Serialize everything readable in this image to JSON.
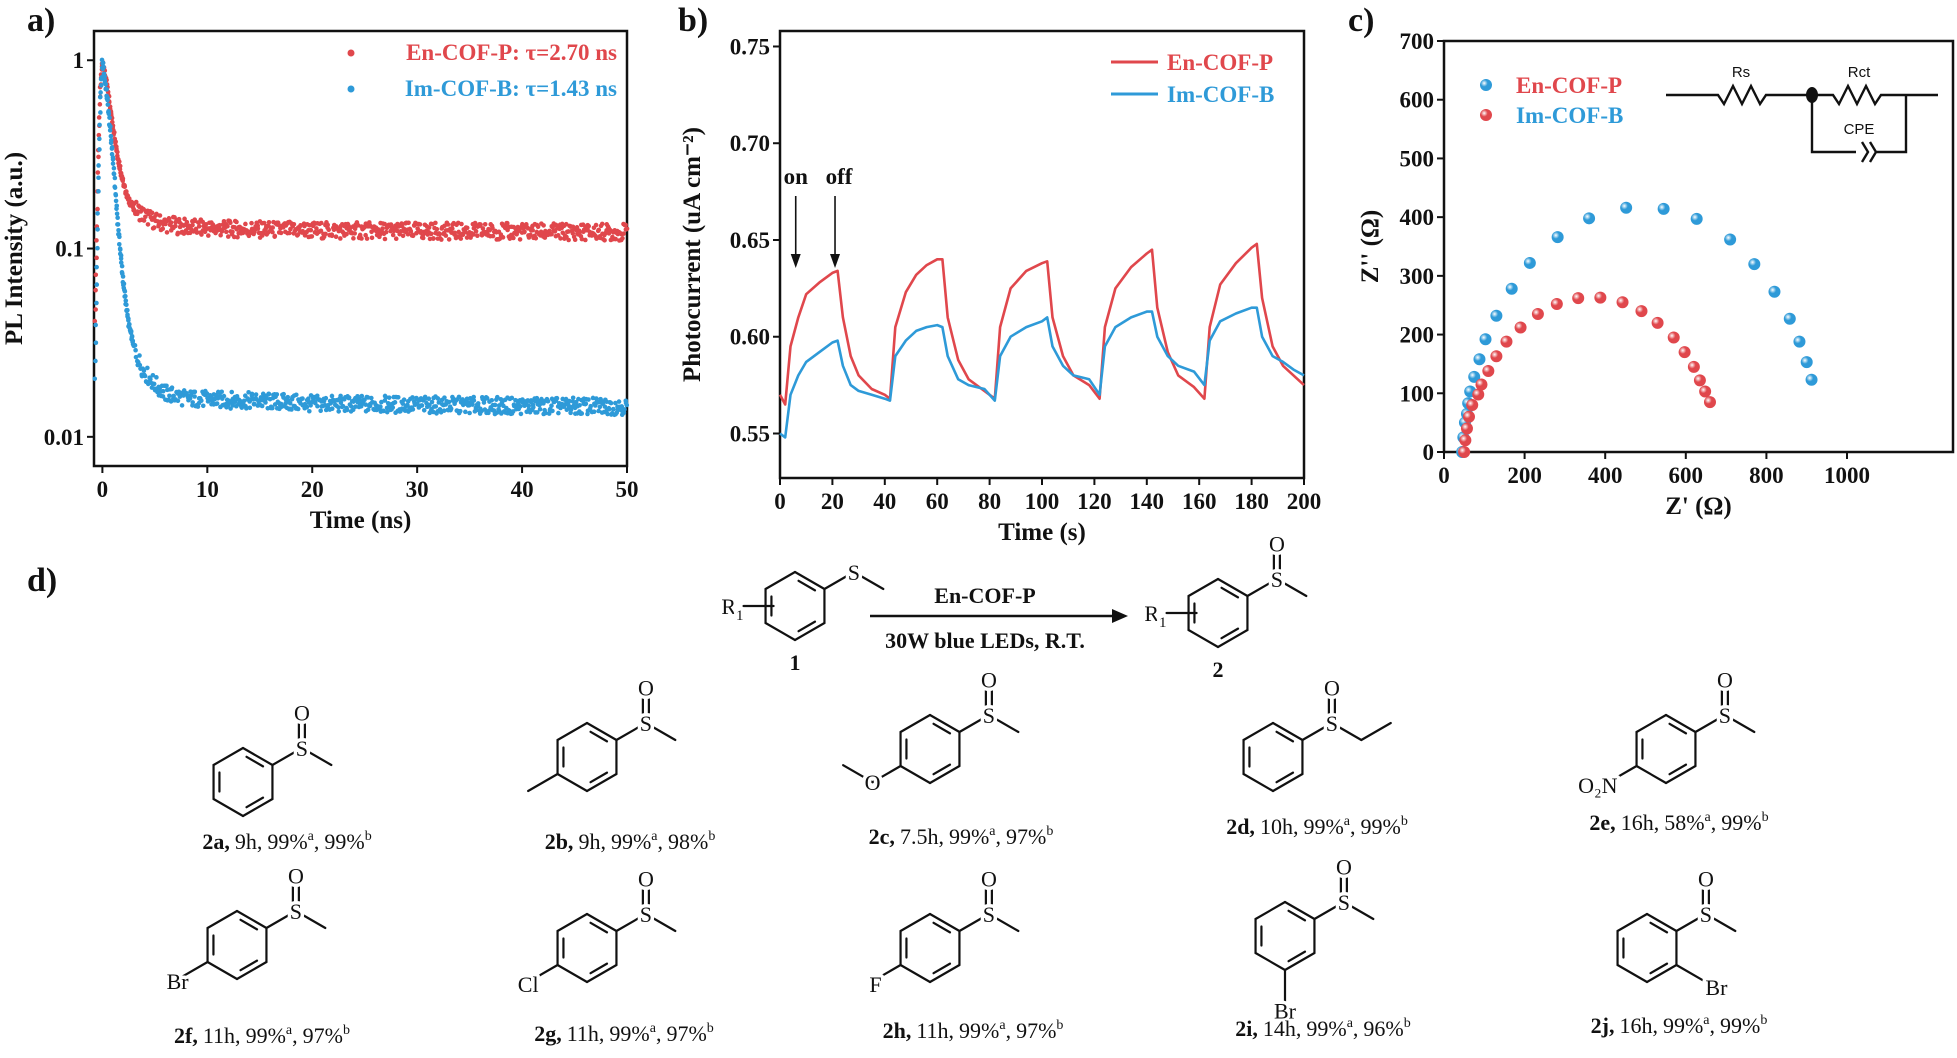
{
  "panel_labels": [
    "a)",
    "b)",
    "c)",
    "d)"
  ],
  "colors": {
    "red": "#e0474c",
    "blue": "#2e9ad8",
    "ink": "#111111"
  },
  "chart_data": [
    {
      "id": "a",
      "type": "scatter",
      "xlabel": "Time (ns)",
      "ylabel": "PL Intensity (a.u.)",
      "xlim": [
        -0.8,
        50
      ],
      "ylim": [
        0.007,
        1.43
      ],
      "ylog": true,
      "xticks": [
        0,
        10,
        20,
        30,
        40,
        50
      ],
      "xtick_labels": [
        "0",
        "10",
        "20",
        "30",
        "40",
        "50"
      ],
      "yticks": [
        1,
        0.1,
        0.01
      ],
      "ytick_labels": [
        "1",
        "0.1",
        "0.01"
      ],
      "legend_position": "top-right",
      "series": [
        {
          "name": "En-COF-P: τ=2.70 ns",
          "color": "#e0474c",
          "x": [
            -0.7,
            -0.4,
            -0.2,
            0,
            0.5,
            1,
            1.5,
            2,
            2.5,
            3,
            4,
            5,
            6,
            8,
            10,
            15,
            20,
            30,
            40,
            50
          ],
          "y": [
            0.04,
            0.3,
            0.7,
            1,
            0.7,
            0.45,
            0.3,
            0.22,
            0.18,
            0.165,
            0.15,
            0.14,
            0.135,
            0.13,
            0.128,
            0.126,
            0.125,
            0.124,
            0.123,
            0.122
          ]
        },
        {
          "name": "Im-COF-B: τ=1.43 ns",
          "color": "#2e9ad8",
          "x": [
            -0.7,
            -0.4,
            -0.2,
            0,
            0.5,
            1,
            1.5,
            2,
            2.5,
            3,
            3.5,
            4,
            5,
            6,
            8,
            10,
            15,
            20,
            30,
            40,
            50
          ],
          "y": [
            0.02,
            0.2,
            0.6,
            1,
            0.6,
            0.3,
            0.13,
            0.065,
            0.04,
            0.03,
            0.025,
            0.022,
            0.019,
            0.017,
            0.016,
            0.0158,
            0.0155,
            0.015,
            0.0148,
            0.0146,
            0.0145
          ]
        }
      ]
    },
    {
      "id": "b",
      "type": "line",
      "xlabel": "Time (s)",
      "ylabel": "Photocurrent (uA cm⁻²)",
      "xlim": [
        0,
        200
      ],
      "ylim": [
        0.527,
        0.758
      ],
      "xticks": [
        0,
        20,
        40,
        60,
        80,
        100,
        120,
        140,
        160,
        180,
        200
      ],
      "xtick_labels": [
        "0",
        "20",
        "40",
        "60",
        "80",
        "100",
        "120",
        "140",
        "160",
        "180",
        "200"
      ],
      "yticks": [
        0.55,
        0.6,
        0.65,
        0.7,
        0.75
      ],
      "ytick_labels": [
        "0.55",
        "0.60",
        "0.65",
        "0.70",
        "0.75"
      ],
      "legend_position": "top-right",
      "annotations": [
        {
          "text": "on",
          "t": 6
        },
        {
          "text": "off",
          "t": 21
        }
      ],
      "series": [
        {
          "name": "En-COF-P",
          "color": "#e0474c",
          "points": [
            [
              0,
              0.57
            ],
            [
              2,
              0.565
            ],
            [
              4,
              0.595
            ],
            [
              7,
              0.61
            ],
            [
              10,
              0.622
            ],
            [
              15,
              0.628
            ],
            [
              20,
              0.633
            ],
            [
              22,
              0.634
            ],
            [
              24,
              0.61
            ],
            [
              27,
              0.59
            ],
            [
              30,
              0.58
            ],
            [
              35,
              0.573
            ],
            [
              40,
              0.57
            ],
            [
              42,
              0.568
            ],
            [
              44,
              0.605
            ],
            [
              48,
              0.623
            ],
            [
              52,
              0.632
            ],
            [
              56,
              0.637
            ],
            [
              60,
              0.64
            ],
            [
              62,
              0.64
            ],
            [
              64,
              0.61
            ],
            [
              68,
              0.588
            ],
            [
              72,
              0.578
            ],
            [
              78,
              0.572
            ],
            [
              82,
              0.568
            ],
            [
              84,
              0.605
            ],
            [
              88,
              0.625
            ],
            [
              94,
              0.634
            ],
            [
              100,
              0.638
            ],
            [
              102,
              0.639
            ],
            [
              104,
              0.61
            ],
            [
              108,
              0.59
            ],
            [
              112,
              0.58
            ],
            [
              118,
              0.575
            ],
            [
              122,
              0.568
            ],
            [
              124,
              0.605
            ],
            [
              128,
              0.625
            ],
            [
              134,
              0.636
            ],
            [
              140,
              0.643
            ],
            [
              142,
              0.645
            ],
            [
              144,
              0.615
            ],
            [
              148,
              0.592
            ],
            [
              152,
              0.58
            ],
            [
              158,
              0.574
            ],
            [
              162,
              0.568
            ],
            [
              164,
              0.605
            ],
            [
              168,
              0.627
            ],
            [
              174,
              0.638
            ],
            [
              180,
              0.646
            ],
            [
              182,
              0.648
            ],
            [
              184,
              0.62
            ],
            [
              188,
              0.595
            ],
            [
              192,
              0.585
            ],
            [
              196,
              0.58
            ],
            [
              200,
              0.575
            ]
          ]
        },
        {
          "name": "Im-COF-B",
          "color": "#2e9ad8",
          "points": [
            [
              0,
              0.55
            ],
            [
              2,
              0.548
            ],
            [
              4,
              0.57
            ],
            [
              7,
              0.58
            ],
            [
              10,
              0.587
            ],
            [
              15,
              0.592
            ],
            [
              20,
              0.597
            ],
            [
              22,
              0.598
            ],
            [
              24,
              0.585
            ],
            [
              27,
              0.575
            ],
            [
              30,
              0.572
            ],
            [
              35,
              0.57
            ],
            [
              40,
              0.568
            ],
            [
              42,
              0.567
            ],
            [
              44,
              0.59
            ],
            [
              48,
              0.598
            ],
            [
              52,
              0.603
            ],
            [
              56,
              0.605
            ],
            [
              60,
              0.606
            ],
            [
              62,
              0.605
            ],
            [
              64,
              0.59
            ],
            [
              68,
              0.578
            ],
            [
              72,
              0.575
            ],
            [
              78,
              0.573
            ],
            [
              82,
              0.567
            ],
            [
              84,
              0.59
            ],
            [
              88,
              0.6
            ],
            [
              94,
              0.605
            ],
            [
              100,
              0.608
            ],
            [
              102,
              0.61
            ],
            [
              104,
              0.595
            ],
            [
              108,
              0.585
            ],
            [
              112,
              0.58
            ],
            [
              118,
              0.578
            ],
            [
              122,
              0.57
            ],
            [
              124,
              0.595
            ],
            [
              128,
              0.605
            ],
            [
              134,
              0.61
            ],
            [
              140,
              0.613
            ],
            [
              142,
              0.613
            ],
            [
              144,
              0.6
            ],
            [
              148,
              0.59
            ],
            [
              152,
              0.585
            ],
            [
              158,
              0.582
            ],
            [
              162,
              0.575
            ],
            [
              164,
              0.598
            ],
            [
              168,
              0.608
            ],
            [
              174,
              0.612
            ],
            [
              180,
              0.615
            ],
            [
              182,
              0.615
            ],
            [
              184,
              0.6
            ],
            [
              188,
              0.59
            ],
            [
              192,
              0.587
            ],
            [
              196,
              0.583
            ],
            [
              200,
              0.58
            ]
          ]
        }
      ]
    },
    {
      "id": "c",
      "type": "scatter",
      "xlabel": "Z' (Ω)",
      "ylabel": "Z'' (Ω)",
      "xlim": [
        0,
        1263
      ],
      "ylim": [
        0,
        700
      ],
      "xticks": [
        0,
        200,
        400,
        600,
        800,
        1000
      ],
      "xtick_labels": [
        "0",
        "200",
        "400",
        "600",
        "800",
        "1000"
      ],
      "yticks": [
        0,
        100,
        200,
        300,
        400,
        500,
        600,
        700
      ],
      "ytick_labels": [
        "0",
        "100",
        "200",
        "300",
        "400",
        "500",
        "600",
        "700"
      ],
      "legend_position": "top-left",
      "legend": [
        {
          "text": "En-COF-P",
          "text_color": "#e0474c",
          "marker_color": "#2e9ad8"
        },
        {
          "text": "Im-COF-B",
          "text_color": "#2e9ad8",
          "marker_color": "#e0474c"
        }
      ],
      "circuit": {
        "rs": "Rs",
        "rct": "Rct",
        "cpe": "CPE"
      },
      "series": [
        {
          "name": "blue",
          "color": "#2e9ad8",
          "points": [
            [
              45,
              0
            ],
            [
              48,
              25
            ],
            [
              52,
              50
            ],
            [
              57,
              65
            ],
            [
              60,
              83
            ],
            [
              65,
              103
            ],
            [
              75,
              128
            ],
            [
              88,
              158
            ],
            [
              103,
              192
            ],
            [
              130,
              232
            ],
            [
              168,
              278
            ],
            [
              213,
              322
            ],
            [
              282,
              366
            ],
            [
              360,
              398
            ],
            [
              452,
              416
            ],
            [
              545,
              414
            ],
            [
              627,
              397
            ],
            [
              710,
              362
            ],
            [
              770,
              320
            ],
            [
              820,
              273
            ],
            [
              858,
              227
            ],
            [
              882,
              188
            ],
            [
              900,
              153
            ],
            [
              912,
              123
            ]
          ]
        },
        {
          "name": "red",
          "color": "#e0474c",
          "points": [
            [
              50,
              0
            ],
            [
              53,
              20
            ],
            [
              57,
              40
            ],
            [
              62,
              60
            ],
            [
              70,
              80
            ],
            [
              85,
              98
            ],
            [
              93,
              115
            ],
            [
              110,
              138
            ],
            [
              130,
              163
            ],
            [
              155,
              188
            ],
            [
              190,
              212
            ],
            [
              233,
              235
            ],
            [
              280,
              252
            ],
            [
              333,
              262
            ],
            [
              388,
              263
            ],
            [
              443,
              255
            ],
            [
              490,
              240
            ],
            [
              530,
              220
            ],
            [
              570,
              195
            ],
            [
              597,
              170
            ],
            [
              620,
              145
            ],
            [
              635,
              122
            ],
            [
              648,
              103
            ],
            [
              660,
              85
            ]
          ]
        }
      ]
    }
  ],
  "scheme": {
    "catalyst": "En-COF-P",
    "conditions": "30W blue LEDs, R.T.",
    "r_group": "R",
    "r_index": "1",
    "reactant_number": "1",
    "product_number": "2",
    "atoms": {
      "S": "S",
      "O": "O"
    }
  },
  "yield_marks": [
    "a",
    "b"
  ],
  "compounds": [
    {
      "id": "2a,",
      "time": "9h,",
      "yield_a": "99%",
      "yield_b": "99%"
    },
    {
      "id": "2b,",
      "time": "9h,",
      "yield_a": "99%",
      "yield_b": "98%",
      "sub": {
        "pos": "para",
        "kind": "methyl"
      }
    },
    {
      "id": "2c,",
      "time": "7.5h,",
      "yield_a": "99%",
      "yield_b": "97%",
      "sub": {
        "pos": "para",
        "kind": "methoxy",
        "text": "O"
      }
    },
    {
      "id": "2d,",
      "time": "10h,",
      "yield_a": "99%",
      "yield_b": "99%",
      "ethyl": true
    },
    {
      "id": "2e,",
      "time": "16h,",
      "yield_a": "58%",
      "yield_b": "99%",
      "sub": {
        "pos": "para",
        "kind": "label",
        "text": "O₂N"
      }
    },
    {
      "id": "2f,",
      "time": "11h,",
      "yield_a": "99%",
      "yield_b": "97%",
      "sub": {
        "pos": "para",
        "kind": "label",
        "text": "Br"
      }
    },
    {
      "id": "2g,",
      "time": "11h,",
      "yield_a": "99%",
      "yield_b": "97%",
      "sub": {
        "pos": "para",
        "kind": "label",
        "text": "Cl"
      }
    },
    {
      "id": "2h,",
      "time": "11h,",
      "yield_a": "99%",
      "yield_b": "97%",
      "sub": {
        "pos": "para",
        "kind": "label",
        "text": "F"
      }
    },
    {
      "id": "2i,",
      "time": "14h,",
      "yield_a": "99%",
      "yield_b": "96%",
      "sub": {
        "pos": "meta",
        "kind": "label",
        "text": "Br"
      }
    },
    {
      "id": "2j,",
      "time": "16h,",
      "yield_a": "99%",
      "yield_b": "99%",
      "sub": {
        "pos": "ortho",
        "kind": "label",
        "text": "Br"
      }
    }
  ]
}
